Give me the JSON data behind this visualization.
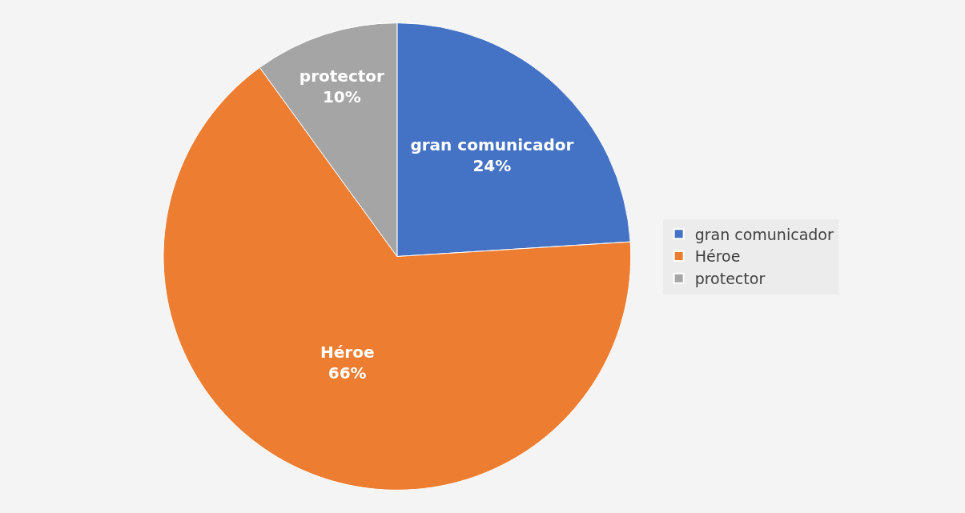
{
  "chart_data": {
    "type": "pie",
    "categories": [
      "gran comunicador",
      "Héroe",
      "protector"
    ],
    "values": [
      24,
      66,
      10
    ],
    "value_labels": [
      "24%",
      "66%",
      "10%"
    ],
    "colors": [
      "#4472c4",
      "#ed7d31",
      "#a5a5a5"
    ],
    "legend": "right"
  }
}
